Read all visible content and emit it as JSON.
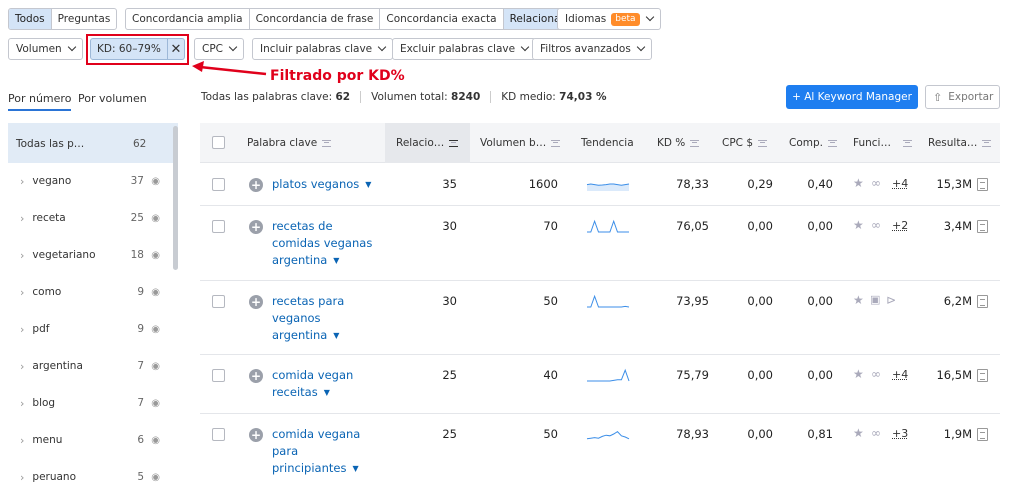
{
  "top_tabs": [
    "Todos",
    "Preguntas",
    "Concordancia amplia",
    "Concordancia de frase",
    "Concordancia exacta",
    "Relacionadas"
  ],
  "idiomas": {
    "label": "Idiomas",
    "badge": "beta"
  },
  "filters": {
    "volumen": "Volumen",
    "kd": "KD: 60–79%",
    "cpc": "CPC",
    "incluir": "Incluir palabras clave",
    "excluir": "Excluir palabras clave",
    "avanzados": "Filtros avanzados"
  },
  "annotation": "Filtrado por KD%",
  "view_tabs": [
    "Por número",
    "Por volumen"
  ],
  "stats": {
    "total_label": "Todas las palabras clave:",
    "total": "62",
    "vol_label": "Volumen total:",
    "vol": "8240",
    "kd_label": "KD medio:",
    "kd": "74,03 %"
  },
  "actions": {
    "manager": "+ Al Keyword Manager",
    "export": "Exportar"
  },
  "sidebar": {
    "all_label": "Todas las p…",
    "all_count": "62",
    "items": [
      {
        "label": "vegano",
        "count": "37"
      },
      {
        "label": "receta",
        "count": "25"
      },
      {
        "label": "vegetariano",
        "count": "18"
      },
      {
        "label": "como",
        "count": "9"
      },
      {
        "label": "pdf",
        "count": "9"
      },
      {
        "label": "argentina",
        "count": "7"
      },
      {
        "label": "blog",
        "count": "7"
      },
      {
        "label": "menu",
        "count": "6"
      },
      {
        "label": "peruano",
        "count": "5"
      }
    ]
  },
  "columns": [
    "Palabra clave",
    "Relacio…",
    "Volumen b…",
    "Tendencia",
    "KD %",
    "CPC $",
    "Comp.",
    "Funci…",
    "Resulta…"
  ],
  "rows": [
    {
      "kw": [
        "platos veganos"
      ],
      "rel": "35",
      "vol": "1600",
      "kd": "78,33",
      "cpc": "0,29",
      "comp": "0,40",
      "more": "+4",
      "res": "15,3M",
      "trend": [
        0.45,
        0.5,
        0.45,
        0.4,
        0.42,
        0.45,
        0.5,
        0.5,
        0.45,
        0.4,
        0.45,
        0.5
      ]
    },
    {
      "kw": [
        "recetas de",
        "comidas veganas",
        "argentina"
      ],
      "rel": "30",
      "vol": "70",
      "kd": "76,05",
      "cpc": "0,00",
      "comp": "0,00",
      "more": "+2",
      "res": "3,4M",
      "trend": [
        0,
        0,
        0.9,
        0,
        0,
        0,
        0,
        0.9,
        0,
        0,
        0,
        0
      ]
    },
    {
      "kw": [
        "recetas para",
        "veganos",
        "argentina"
      ],
      "rel": "30",
      "vol": "50",
      "kd": "73,95",
      "cpc": "0,00",
      "comp": "0,00",
      "more": "",
      "res": "6,2M",
      "trend": [
        0,
        0,
        0.9,
        0,
        0,
        0,
        0,
        0,
        0,
        0,
        0.05,
        0
      ]
    },
    {
      "kw": [
        "comida vegan",
        "receitas"
      ],
      "rel": "25",
      "vol": "40",
      "kd": "75,79",
      "cpc": "0,00",
      "comp": "0,00",
      "more": "+4",
      "res": "16,5M",
      "trend": [
        0,
        0,
        0,
        0,
        0,
        0,
        0,
        0.05,
        0.1,
        0.1,
        0.9,
        0
      ]
    },
    {
      "kw": [
        "comida vegana",
        "para",
        "principiantes"
      ],
      "rel": "25",
      "vol": "50",
      "kd": "78,93",
      "cpc": "0,00",
      "comp": "0,81",
      "more": "+3",
      "res": "1,9M",
      "trend": [
        0.1,
        0.15,
        0.2,
        0.15,
        0.3,
        0.4,
        0.35,
        0.5,
        0.7,
        0.35,
        0.25,
        0.1
      ]
    }
  ],
  "colors": {
    "link": "#0a64b4",
    "accent": "#1e7ef0",
    "annotation": "#e0001b",
    "selected": "#d4e4f7"
  }
}
